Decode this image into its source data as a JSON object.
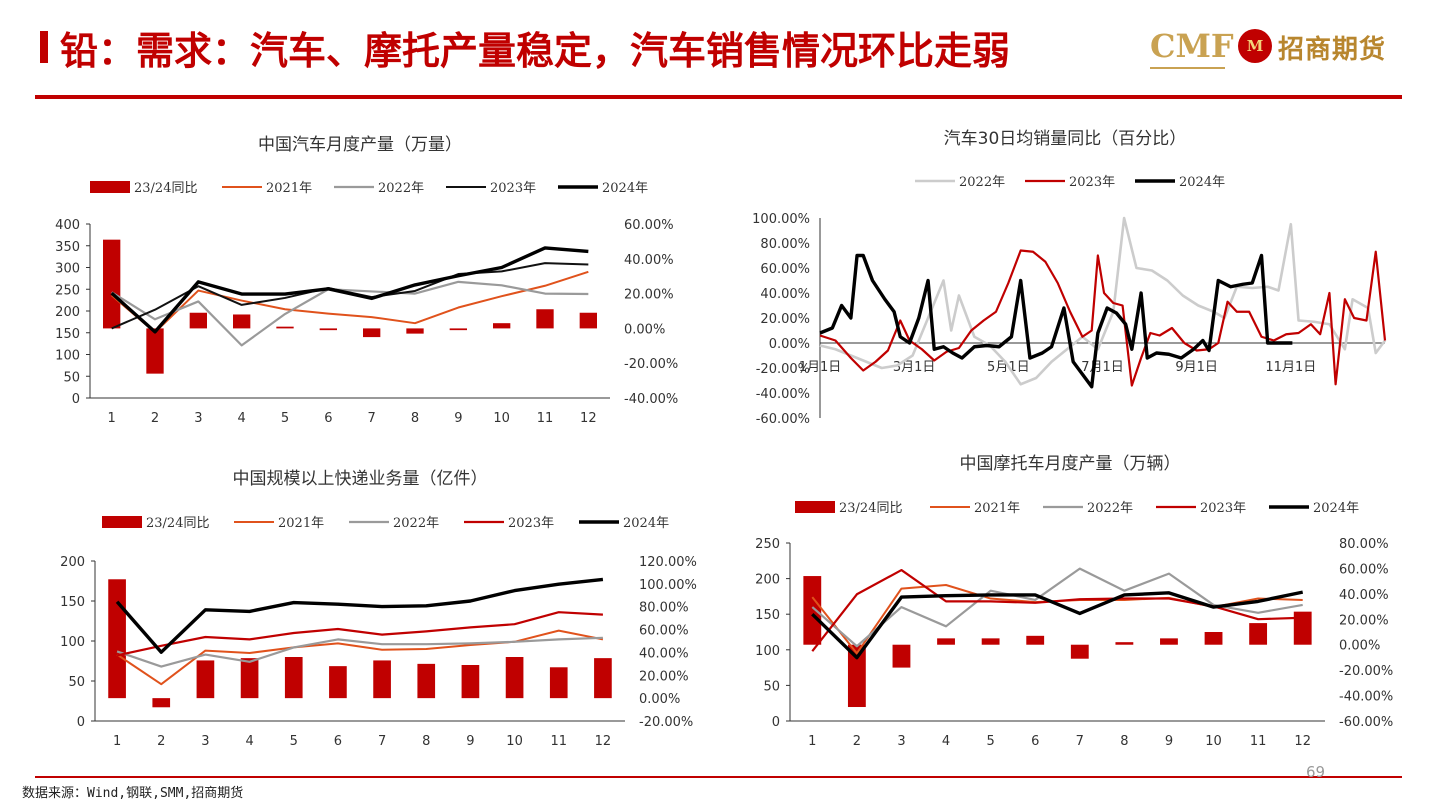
{
  "header": {
    "title": "铅：需求：汽车、摩托产量稳定，汽车销售情况环比走弱",
    "logo_text": "CMF",
    "logo_mark": "M",
    "logo_company": "招商期货"
  },
  "footer": {
    "source": "数据来源：Wind,钢联,SMM,招商期货",
    "page_number": "69"
  },
  "colors": {
    "yoy_bar": "#c00000",
    "y2021": "#e0521c",
    "y2022": "#9a9a9a",
    "y2023_black_thin": "#111111",
    "y2023_red": "#c00000",
    "y2024": "#000000",
    "y2022_light": "#cccccc"
  },
  "chart_data": [
    {
      "id": "auto-production",
      "type": "bar+line",
      "title": "中国汽车月度产量（万量）",
      "categories": [
        "1",
        "2",
        "3",
        "4",
        "5",
        "6",
        "7",
        "8",
        "9",
        "10",
        "11",
        "12"
      ],
      "ylim": [
        0,
        400
      ],
      "yticks": [
        0,
        50,
        100,
        150,
        200,
        250,
        300,
        350,
        400
      ],
      "y2lim": [
        -0.4,
        0.6
      ],
      "y2ticks": [
        "-40.00%",
        "-20.00%",
        "0.00%",
        "20.00%",
        "40.00%",
        "60.00%"
      ],
      "bar_series": {
        "name": "23/24同比",
        "values": [
          0.51,
          -0.26,
          0.09,
          0.08,
          0.01,
          -0.01,
          -0.05,
          -0.03,
          -0.01,
          0.03,
          0.11,
          0.09
        ]
      },
      "series": [
        {
          "name": "2021年",
          "values": [
            236,
            151,
            247,
            224,
            204,
            194,
            186,
            172,
            208,
            234,
            258,
            290
          ]
        },
        {
          "name": "2022年",
          "values": [
            243,
            181,
            222,
            121,
            193,
            250,
            245,
            240,
            267,
            259,
            240,
            239
          ]
        },
        {
          "name": "2023年",
          "values": [
            160,
            203,
            257,
            214,
            230,
            253,
            232,
            246,
            285,
            291,
            310,
            307
          ]
        },
        {
          "name": "2024年",
          "values": [
            241,
            152,
            267,
            239,
            239,
            251,
            229,
            260,
            281,
            300,
            345,
            337
          ]
        }
      ],
      "grid": false,
      "legend": "top"
    },
    {
      "id": "auto-sales-yoy",
      "type": "line",
      "title": "汽车30日均销量同比（百分比）",
      "xticks": [
        "1月1日",
        "3月1日",
        "5月1日",
        "7月1日",
        "9月1日",
        "11月1日"
      ],
      "ylim": [
        -0.6,
        1.0
      ],
      "yticks": [
        "-60.00%",
        "-40.00%",
        "-20.00%",
        "0.00%",
        "20.00%",
        "40.00%",
        "60.00%",
        "80.00%",
        "100.00%"
      ],
      "x_domain": [
        0,
        366
      ],
      "series": [
        {
          "name": "2022年",
          "points": [
            [
              0,
              -0.02
            ],
            [
              10,
              -0.05
            ],
            [
              20,
              -0.1
            ],
            [
              30,
              -0.15
            ],
            [
              40,
              -0.2
            ],
            [
              50,
              -0.18
            ],
            [
              60,
              -0.1
            ],
            [
              70,
              0.2
            ],
            [
              80,
              0.5
            ],
            [
              85,
              0.1
            ],
            [
              90,
              0.38
            ],
            [
              100,
              0.05
            ],
            [
              110,
              -0.02
            ],
            [
              120,
              -0.15
            ],
            [
              130,
              -0.33
            ],
            [
              140,
              -0.28
            ],
            [
              150,
              -0.15
            ],
            [
              160,
              -0.05
            ],
            [
              170,
              0.05
            ],
            [
              180,
              -0.05
            ],
            [
              190,
              0.25
            ],
            [
              197,
              1.0
            ],
            [
              205,
              0.6
            ],
            [
              215,
              0.58
            ],
            [
              225,
              0.5
            ],
            [
              235,
              0.38
            ],
            [
              245,
              0.3
            ],
            [
              255,
              0.25
            ],
            [
              262,
              0.2
            ],
            [
              270,
              0.45
            ],
            [
              280,
              0.44
            ],
            [
              290,
              0.45
            ],
            [
              297,
              0.42
            ],
            [
              305,
              0.95
            ],
            [
              310,
              0.18
            ],
            [
              320,
              0.17
            ],
            [
              330,
              0.15
            ],
            [
              340,
              -0.05
            ],
            [
              345,
              0.35
            ],
            [
              355,
              0.28
            ],
            [
              360,
              -0.08
            ],
            [
              366,
              0.02
            ]
          ]
        },
        {
          "name": "2023年",
          "points": [
            [
              0,
              0.06
            ],
            [
              10,
              0.02
            ],
            [
              20,
              -0.12
            ],
            [
              28,
              -0.22
            ],
            [
              36,
              -0.15
            ],
            [
              44,
              -0.06
            ],
            [
              52,
              0.18
            ],
            [
              58,
              0.02
            ],
            [
              66,
              -0.05
            ],
            [
              74,
              -0.14
            ],
            [
              82,
              -0.07
            ],
            [
              90,
              -0.04
            ],
            [
              98,
              0.1
            ],
            [
              106,
              0.18
            ],
            [
              114,
              0.25
            ],
            [
              122,
              0.48
            ],
            [
              130,
              0.74
            ],
            [
              138,
              0.73
            ],
            [
              146,
              0.65
            ],
            [
              154,
              0.48
            ],
            [
              162,
              0.25
            ],
            [
              170,
              0.05
            ],
            [
              176,
              0.1
            ],
            [
              180,
              0.7
            ],
            [
              184,
              0.4
            ],
            [
              190,
              0.32
            ],
            [
              196,
              0.3
            ],
            [
              202,
              -0.34
            ],
            [
              208,
              -0.12
            ],
            [
              214,
              0.08
            ],
            [
              220,
              0.06
            ],
            [
              228,
              0.12
            ],
            [
              236,
              0.0
            ],
            [
              244,
              -0.06
            ],
            [
              252,
              -0.05
            ],
            [
              258,
              0.0
            ],
            [
              264,
              0.33
            ],
            [
              270,
              0.25
            ],
            [
              278,
              0.25
            ],
            [
              286,
              0.05
            ],
            [
              294,
              0.02
            ],
            [
              302,
              0.07
            ],
            [
              310,
              0.08
            ],
            [
              318,
              0.15
            ],
            [
              324,
              0.07
            ],
            [
              330,
              0.4
            ],
            [
              334,
              -0.33
            ],
            [
              340,
              0.35
            ],
            [
              346,
              0.2
            ],
            [
              354,
              0.18
            ],
            [
              360,
              0.73
            ],
            [
              366,
              0.02
            ]
          ]
        },
        {
          "name": "2024年",
          "points": [
            [
              0,
              0.08
            ],
            [
              8,
              0.12
            ],
            [
              14,
              0.3
            ],
            [
              20,
              0.2
            ],
            [
              24,
              0.7
            ],
            [
              28,
              0.7
            ],
            [
              34,
              0.5
            ],
            [
              42,
              0.35
            ],
            [
              48,
              0.25
            ],
            [
              52,
              0.05
            ],
            [
              58,
              0.0
            ],
            [
              64,
              0.2
            ],
            [
              70,
              0.5
            ],
            [
              74,
              -0.05
            ],
            [
              80,
              -0.03
            ],
            [
              86,
              -0.08
            ],
            [
              92,
              -0.12
            ],
            [
              100,
              -0.03
            ],
            [
              108,
              -0.02
            ],
            [
              116,
              -0.03
            ],
            [
              124,
              0.05
            ],
            [
              130,
              0.5
            ],
            [
              136,
              -0.12
            ],
            [
              144,
              -0.08
            ],
            [
              150,
              -0.03
            ],
            [
              158,
              0.28
            ],
            [
              164,
              -0.15
            ],
            [
              170,
              -0.25
            ],
            [
              176,
              -0.35
            ],
            [
              180,
              0.08
            ],
            [
              186,
              0.28
            ],
            [
              192,
              0.24
            ],
            [
              198,
              0.15
            ],
            [
              202,
              -0.05
            ],
            [
              208,
              0.4
            ],
            [
              212,
              -0.12
            ],
            [
              218,
              -0.08
            ],
            [
              226,
              -0.09
            ],
            [
              234,
              -0.12
            ],
            [
              242,
              -0.05
            ],
            [
              248,
              0.02
            ],
            [
              252,
              -0.06
            ],
            [
              258,
              0.5
            ],
            [
              266,
              0.45
            ],
            [
              274,
              0.47
            ],
            [
              280,
              0.48
            ],
            [
              286,
              0.7
            ],
            [
              290,
              0.0
            ],
            [
              298,
              0.0
            ],
            [
              306,
              0.0
            ]
          ]
        }
      ],
      "grid": false,
      "legend": "top"
    },
    {
      "id": "express-volume",
      "type": "bar+line",
      "title": "中国规模以上快递业务量（亿件）",
      "categories": [
        "1",
        "2",
        "3",
        "4",
        "5",
        "6",
        "7",
        "8",
        "9",
        "10",
        "11",
        "12"
      ],
      "ylim": [
        0,
        200
      ],
      "yticks": [
        0,
        50,
        100,
        150,
        200
      ],
      "y2lim": [
        -0.2,
        1.2
      ],
      "y2ticks": [
        "-20.00%",
        "0.00%",
        "20.00%",
        "40.00%",
        "60.00%",
        "80.00%",
        "100.00%",
        "120.00%"
      ],
      "bar_series": {
        "name": "23/24同比",
        "values": [
          1.04,
          -0.08,
          0.33,
          0.35,
          0.36,
          0.28,
          0.33,
          0.3,
          0.29,
          0.36,
          0.27,
          0.35
        ]
      },
      "series": [
        {
          "name": "2021年",
          "values": [
            83,
            46,
            88,
            85,
            92,
            97,
            89,
            90,
            95,
            99,
            113,
            102
          ]
        },
        {
          "name": "2022年",
          "values": [
            87,
            68,
            83,
            74,
            92,
            102,
            96,
            96,
            97,
            99,
            102,
            104
          ]
        },
        {
          "name": "2023年",
          "values": [
            82,
            94,
            105,
            102,
            110,
            115,
            108,
            112,
            117,
            121,
            136,
            133
          ]
        },
        {
          "name": "2024年",
          "values": [
            149,
            86,
            139,
            137,
            148,
            146,
            143,
            144,
            150,
            163,
            171,
            177
          ]
        }
      ],
      "grid": false,
      "legend": "top"
    },
    {
      "id": "motorcycle-production",
      "type": "bar+line",
      "title": "中国摩托车月度产量（万辆）",
      "categories": [
        "1",
        "2",
        "3",
        "4",
        "5",
        "6",
        "7",
        "8",
        "9",
        "10",
        "11",
        "12"
      ],
      "ylim": [
        0,
        250
      ],
      "yticks": [
        0,
        50,
        100,
        150,
        200,
        250
      ],
      "y2lim": [
        -0.6,
        0.8
      ],
      "y2ticks": [
        "-60.00%",
        "-40.00%",
        "-20.00%",
        "0.00%",
        "20.00%",
        "40.00%",
        "60.00%",
        "80.00%"
      ],
      "bar_series": {
        "name": "23/24同比",
        "values": [
          0.54,
          -0.49,
          -0.18,
          0.05,
          0.05,
          0.07,
          -0.11,
          0.02,
          0.05,
          0.1,
          0.17,
          0.26
        ]
      },
      "series": [
        {
          "name": "2021年",
          "values": [
            174,
            95,
            186,
            191,
            172,
            167,
            170,
            170,
            173,
            160,
            172,
            170
          ]
        },
        {
          "name": "2022年",
          "values": [
            160,
            105,
            160,
            133,
            183,
            170,
            214,
            183,
            207,
            163,
            152,
            163
          ]
        },
        {
          "name": "2023年",
          "values": [
            98,
            178,
            212,
            168,
            168,
            166,
            171,
            172,
            172,
            161,
            143,
            145
          ]
        },
        {
          "name": "2024年",
          "values": [
            150,
            89,
            174,
            176,
            177,
            177,
            151,
            177,
            180,
            160,
            168,
            181
          ]
        }
      ],
      "grid": false,
      "legend": "top"
    }
  ]
}
